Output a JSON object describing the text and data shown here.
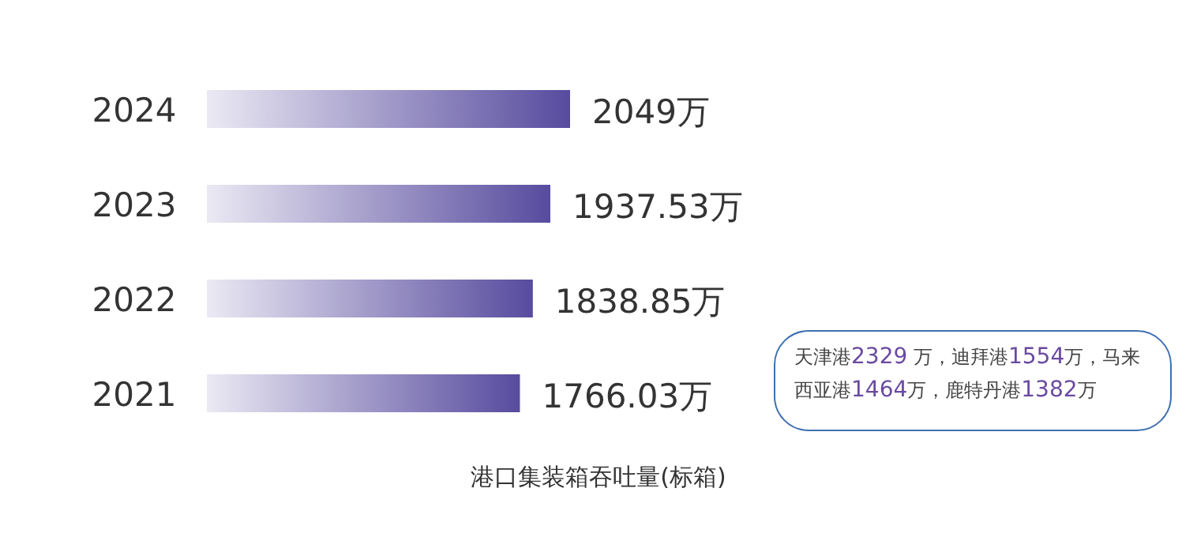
{
  "chart_data": {
    "type": "bar",
    "orientation": "horizontal",
    "categories": [
      "2024",
      "2023",
      "2022",
      "2021"
    ],
    "values": [
      2049,
      1937.53,
      1838.85,
      1766.03
    ],
    "value_labels": [
      "2049万",
      "1937.53万",
      "1838.85万",
      "1766.03万"
    ],
    "color": "#574b9e",
    "xlabel": "港口集装箱吞吐量(标箱)",
    "annotations": [
      "天津港2329 万，迪拜港1554万，马来西亚港1464万，鹿特丹港1382万"
    ]
  }
}
